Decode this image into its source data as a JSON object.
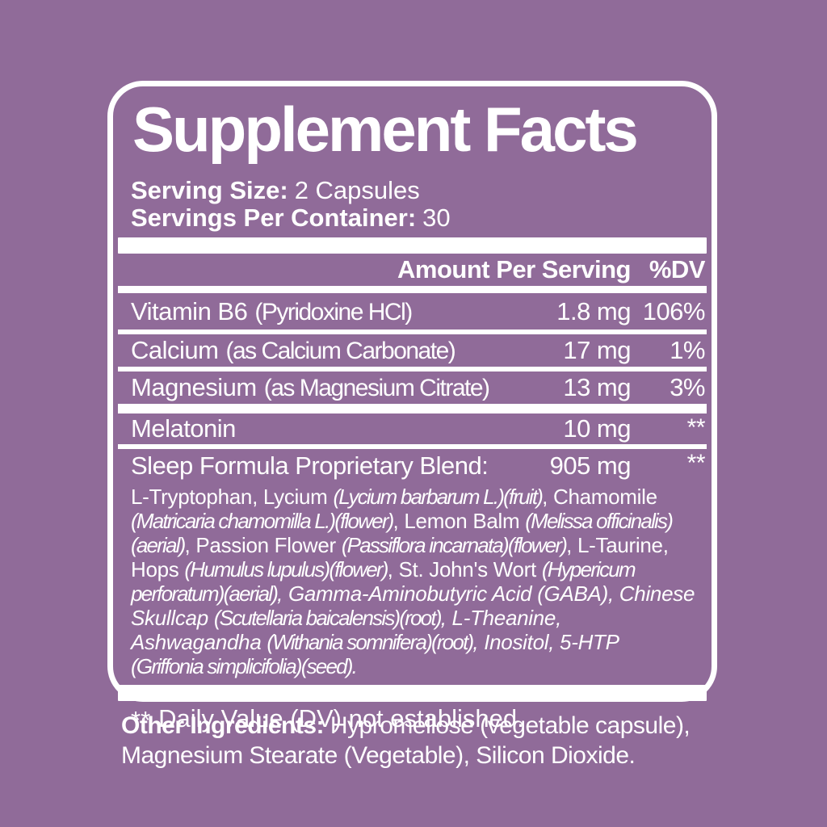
{
  "colors": {
    "background": "#906B99",
    "text_and_rules": "#FFFFFF"
  },
  "label": {
    "title": "Supplement Facts",
    "serving_size": {
      "label": "Serving Size:",
      "value": "2 Capsules"
    },
    "servings_per_container": {
      "label": "Servings Per Container:",
      "value": "30"
    },
    "columns": {
      "amount": "Amount Per Serving",
      "dv": "%DV"
    },
    "rows": [
      {
        "name": "Vitamin B6",
        "detail": "(Pyridoxine HCl)",
        "amount": "1.8 mg",
        "dv": "106%"
      },
      {
        "name": "Calcium",
        "detail": "(as Calcium Carbonate)",
        "amount": "17 mg",
        "dv": "1%"
      },
      {
        "name": "Magnesium",
        "detail": "(as Magnesium Citrate)",
        "amount": "13 mg",
        "dv": "3%"
      },
      {
        "name": "Melatonin",
        "detail": "",
        "amount": "10 mg",
        "dv": "**"
      },
      {
        "name": "Sleep Formula Proprietary Blend:",
        "detail": "",
        "amount": "905 mg",
        "dv": "**"
      }
    ],
    "blend_segments": [
      {
        "t": "L-Tryptophan, Lycium ",
        "s": "n"
      },
      {
        "t": "(Lycium barbarum L.)(fruit)",
        "s": "i"
      },
      {
        "t": ", Chamomile ",
        "s": "n"
      },
      {
        "t": "(Matricaria chamomilla L.)(flower)",
        "s": "i"
      },
      {
        "t": ", Lemon Balm ",
        "s": "n"
      },
      {
        "t": "(Melissa officinalis)(aerial)",
        "s": "i"
      },
      {
        "t": ", Passion Flower ",
        "s": "n"
      },
      {
        "t": "(Passiflora incarnata)(flower)",
        "s": "i"
      },
      {
        "t": ", L-Taurine, Hops ",
        "s": "n"
      },
      {
        "t": "(Humulus lupulus)(flower)",
        "s": "i"
      },
      {
        "t": ", St. John's Wort ",
        "s": "n"
      },
      {
        "t": "(Hypericum perforatum)(aerial)",
        "s": "i"
      },
      {
        "t": ", Gamma-Aminobutyric Acid (GABA), Chinese Skullcap ",
        "s": "w"
      },
      {
        "t": "(Scutellaria baicalensis)(root)",
        "s": "i"
      },
      {
        "t": ", L-Theanine, Ashwagandha ",
        "s": "w"
      },
      {
        "t": "(Withania somnifera)(root)",
        "s": "i"
      },
      {
        "t": ", Inositol, 5-HTP ",
        "s": "w"
      },
      {
        "t": "(Griffonia simplicifolia)(seed).",
        "s": "i"
      }
    ],
    "footnote": {
      "symbol": "**",
      "text": "Daily Value (DV) not established."
    }
  },
  "other_ingredients": {
    "label": "Other Ingredients:",
    "text": "Hypromellose (vegetable capsule), Magnesium Stearate (Vegetable), Silicon Dioxide."
  }
}
